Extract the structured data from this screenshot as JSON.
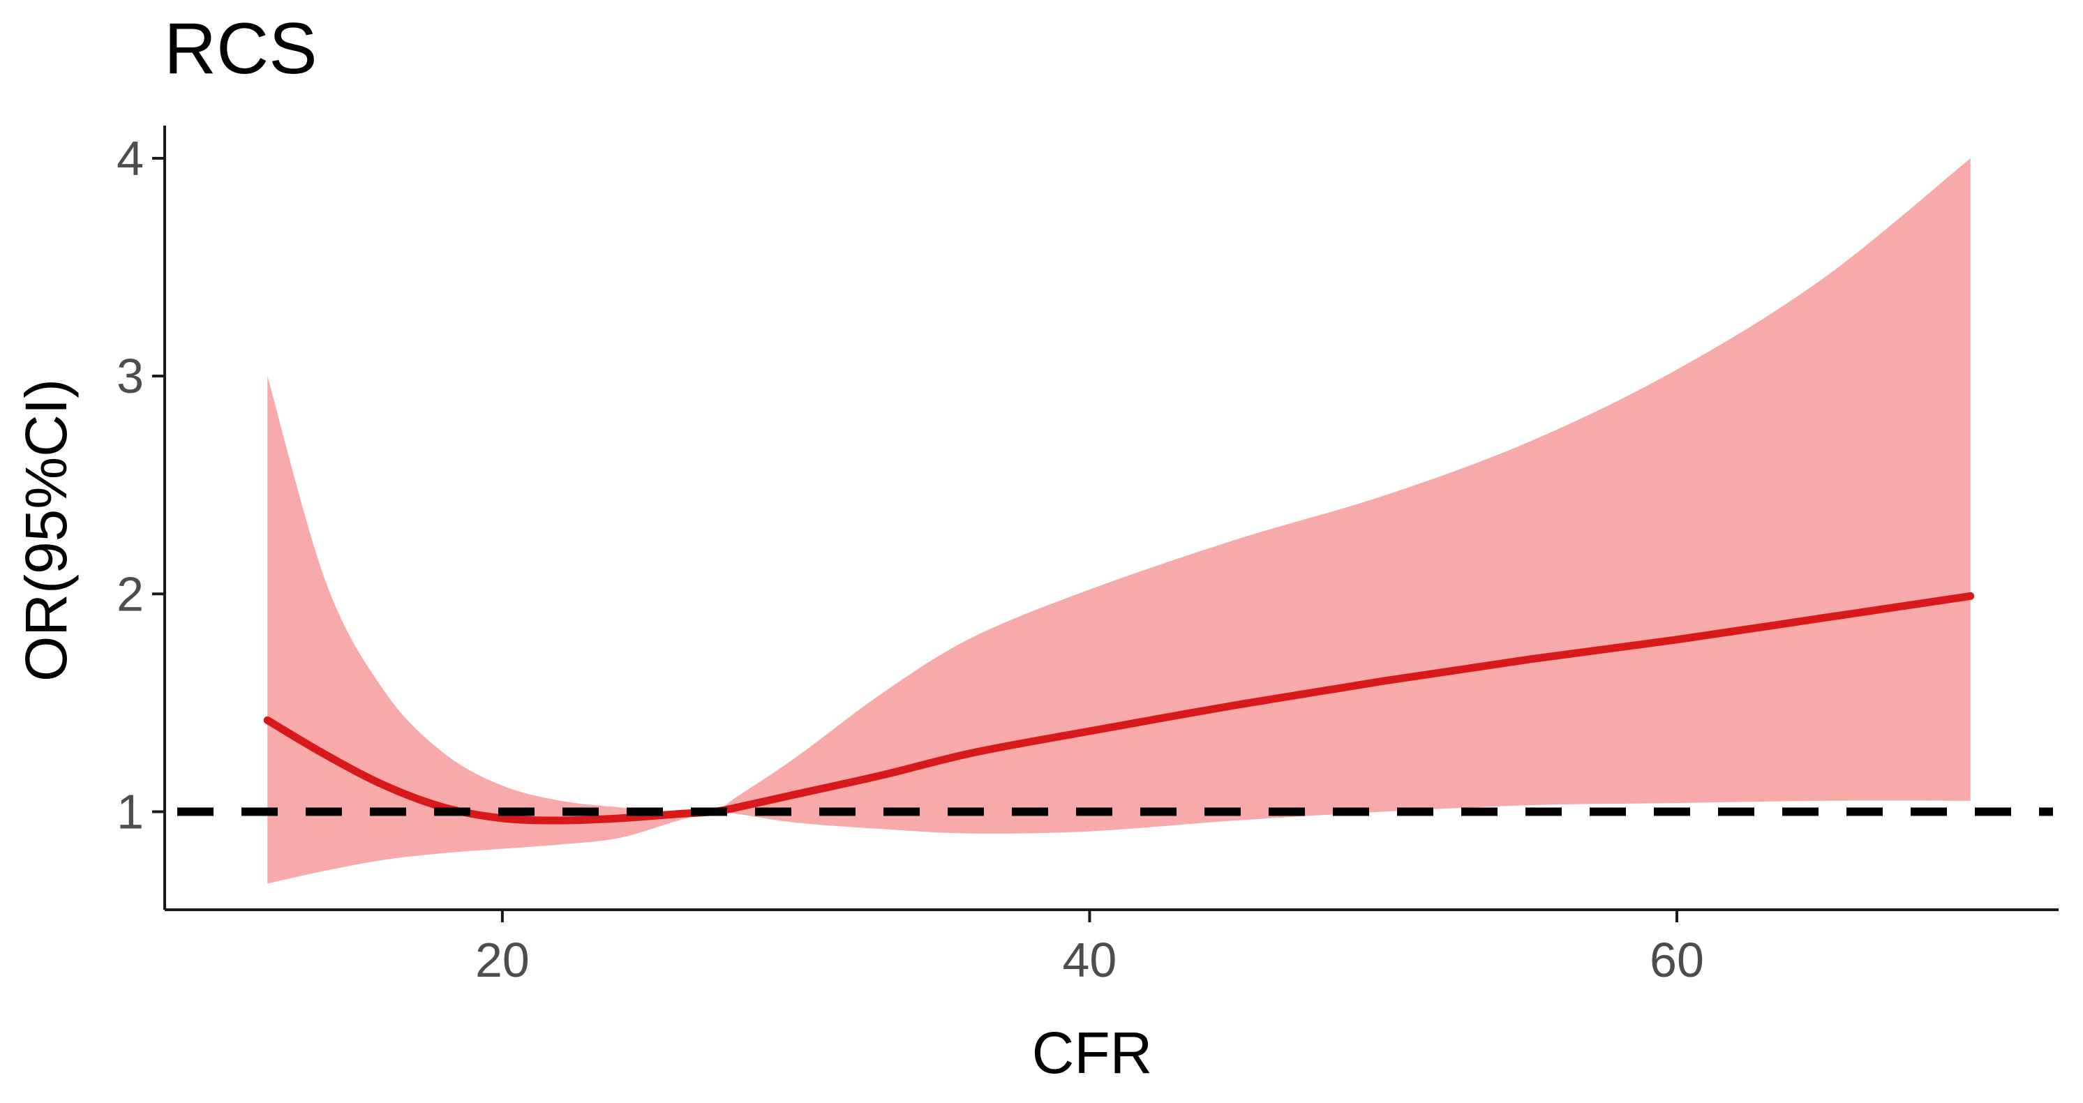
{
  "chart_data": {
    "type": "line",
    "title": "RCS",
    "xlabel": "CFR",
    "ylabel": "OR(95%CI)",
    "xlim": [
      8.5,
      73
    ],
    "ylim": [
      0.55,
      4.15
    ],
    "grid": false,
    "xticks": [
      20,
      40,
      60
    ],
    "xtick_labels": [
      "20",
      "40",
      "60"
    ],
    "yticks": [
      1,
      2,
      3,
      4
    ],
    "ytick_labels": [
      "1",
      "2",
      "3",
      "4"
    ],
    "reference_line": {
      "y": 1,
      "style": "dashed",
      "color": "#000000"
    },
    "colors": {
      "line": "#d7191c",
      "band": "#f8aaaa"
    },
    "series": [
      {
        "x": [
          12,
          14,
          16,
          18,
          20,
          22,
          24,
          26,
          27.2,
          28,
          30,
          33,
          36,
          40,
          45,
          50,
          55,
          60,
          65,
          70
        ],
        "values": [
          1.42,
          1.26,
          1.12,
          1.02,
          0.97,
          0.96,
          0.97,
          0.99,
          1.0,
          1.02,
          1.08,
          1.17,
          1.27,
          1.37,
          1.49,
          1.6,
          1.7,
          1.79,
          1.89,
          1.99
        ],
        "lower": [
          0.67,
          0.73,
          0.78,
          0.81,
          0.83,
          0.85,
          0.88,
          0.96,
          1.0,
          0.99,
          0.95,
          0.92,
          0.9,
          0.91,
          0.96,
          1.0,
          1.03,
          1.04,
          1.05,
          1.05
        ],
        "upper": [
          3.0,
          2.05,
          1.55,
          1.27,
          1.12,
          1.05,
          1.02,
          1.0,
          1.0,
          1.07,
          1.25,
          1.55,
          1.8,
          2.02,
          2.25,
          2.45,
          2.7,
          3.03,
          3.45,
          4.0
        ]
      }
    ]
  }
}
